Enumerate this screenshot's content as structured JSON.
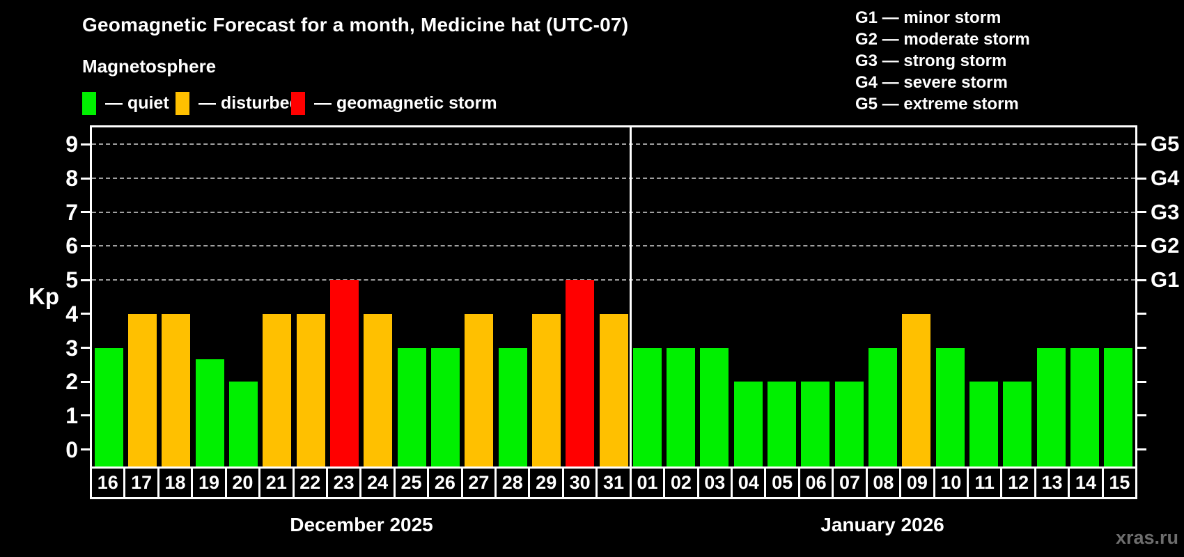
{
  "header": {
    "title": "Geomagnetic Forecast for a month, Medicine hat (UTC-07)",
    "subtitle": "Magnetosphere"
  },
  "legend": {
    "items": [
      {
        "state": "quiet",
        "label": "— quiet",
        "color": "#00f000"
      },
      {
        "state": "disturbed",
        "label": "— disturbed",
        "color": "#ffc000"
      },
      {
        "state": "storm",
        "label": "— geomagnetic storm",
        "color": "#ff0000"
      }
    ]
  },
  "storm_legend": [
    "G1 — minor storm",
    "G2 — moderate storm",
    "G3 — strong storm",
    "G4 — severe storm",
    "G5 — extreme storm"
  ],
  "watermark": "xras.ru",
  "chart_data": {
    "type": "bar",
    "title": "Geomagnetic Forecast for a month, Medicine hat (UTC-07)",
    "ylabel": "Kp",
    "ylim": [
      -0.5,
      9.5
    ],
    "yticks": [
      0,
      1,
      2,
      3,
      4,
      5,
      6,
      7,
      8,
      9
    ],
    "gridlines_at": [
      5,
      6,
      7,
      8,
      9
    ],
    "grid": true,
    "right_axis": [
      {
        "kp": 5,
        "label": "G1"
      },
      {
        "kp": 6,
        "label": "G2"
      },
      {
        "kp": 7,
        "label": "G3"
      },
      {
        "kp": 8,
        "label": "G4"
      },
      {
        "kp": 9,
        "label": "G5"
      }
    ],
    "groups": [
      {
        "label": "December 2025",
        "days": [
          {
            "day": "16",
            "kp": 3,
            "state": "quiet"
          },
          {
            "day": "17",
            "kp": 4,
            "state": "disturbed"
          },
          {
            "day": "18",
            "kp": 4,
            "state": "disturbed"
          },
          {
            "day": "19",
            "kp": 2.67,
            "state": "quiet"
          },
          {
            "day": "20",
            "kp": 2,
            "state": "quiet"
          },
          {
            "day": "21",
            "kp": 4,
            "state": "disturbed"
          },
          {
            "day": "22",
            "kp": 4,
            "state": "disturbed"
          },
          {
            "day": "23",
            "kp": 5,
            "state": "storm"
          },
          {
            "day": "24",
            "kp": 4,
            "state": "disturbed"
          },
          {
            "day": "25",
            "kp": 3,
            "state": "quiet"
          },
          {
            "day": "26",
            "kp": 3,
            "state": "quiet"
          },
          {
            "day": "27",
            "kp": 4,
            "state": "disturbed"
          },
          {
            "day": "28",
            "kp": 3,
            "state": "quiet"
          },
          {
            "day": "29",
            "kp": 4,
            "state": "disturbed"
          },
          {
            "day": "30",
            "kp": 5,
            "state": "storm"
          },
          {
            "day": "31",
            "kp": 4,
            "state": "disturbed"
          }
        ]
      },
      {
        "label": "January 2026",
        "days": [
          {
            "day": "01",
            "kp": 3,
            "state": "quiet"
          },
          {
            "day": "02",
            "kp": 3,
            "state": "quiet"
          },
          {
            "day": "03",
            "kp": 3,
            "state": "quiet"
          },
          {
            "day": "04",
            "kp": 2,
            "state": "quiet"
          },
          {
            "day": "05",
            "kp": 2,
            "state": "quiet"
          },
          {
            "day": "06",
            "kp": 2,
            "state": "quiet"
          },
          {
            "day": "07",
            "kp": 2,
            "state": "quiet"
          },
          {
            "day": "08",
            "kp": 3,
            "state": "quiet"
          },
          {
            "day": "09",
            "kp": 4,
            "state": "disturbed"
          },
          {
            "day": "10",
            "kp": 3,
            "state": "quiet"
          },
          {
            "day": "11",
            "kp": 2,
            "state": "quiet"
          },
          {
            "day": "12",
            "kp": 2,
            "state": "quiet"
          },
          {
            "day": "13",
            "kp": 3,
            "state": "quiet"
          },
          {
            "day": "14",
            "kp": 3,
            "state": "quiet"
          },
          {
            "day": "15",
            "kp": 3,
            "state": "quiet"
          }
        ]
      }
    ]
  }
}
